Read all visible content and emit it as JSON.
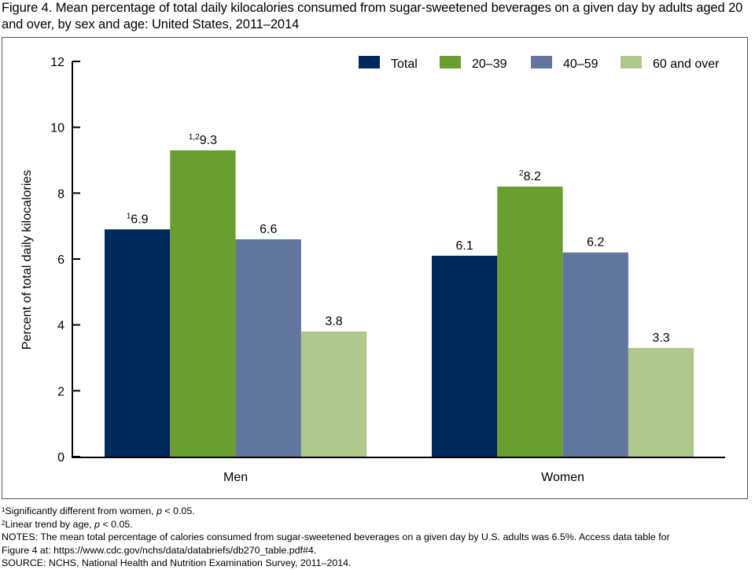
{
  "title": "Figure 4. Mean percentage of total daily kilocalories consumed from sugar-sweetened beverages on a given day by adults aged 20 and over, by sex and age: United States, 2011–2014",
  "chart_data": {
    "type": "bar",
    "title": "Figure 4. Mean percentage of total daily kilocalories consumed from sugar-sweetened beverages on a given day by adults aged 20 and over, by sex and age: United States, 2011–2014",
    "xlabel": "",
    "ylabel": "Percent of total daily kilocalories",
    "ylim": [
      0,
      12
    ],
    "yticks": [
      0,
      2,
      4,
      6,
      8,
      10,
      12
    ],
    "grid": false,
    "legend_position": "top-right",
    "categories": [
      "Men",
      "Women"
    ],
    "series": [
      {
        "name": "Total",
        "color": "#002a5c",
        "values": [
          6.9,
          6.1
        ],
        "labels": [
          "6.9",
          "6.1"
        ],
        "superscripts": [
          "1",
          ""
        ]
      },
      {
        "name": "20–39",
        "color": "#6b9e31",
        "values": [
          9.3,
          8.2
        ],
        "labels": [
          "9.3",
          "8.2"
        ],
        "superscripts": [
          "1,2",
          "2"
        ]
      },
      {
        "name": "40–59",
        "color": "#63769f",
        "values": [
          6.6,
          6.2
        ],
        "labels": [
          "6.6",
          "6.2"
        ],
        "superscripts": [
          "",
          ""
        ]
      },
      {
        "name": "60 and over",
        "color": "#afc88c",
        "values": [
          3.8,
          3.3
        ],
        "labels": [
          "3.8",
          "3.3"
        ],
        "superscripts": [
          "",
          ""
        ]
      }
    ]
  },
  "footnotes": {
    "fn1_mark": "1",
    "fn1_text_a": "Significantly different from women, ",
    "fn1_p": "p",
    "fn1_text_b": " < 0.05.",
    "fn2_mark": "2",
    "fn2_text_a": "Linear trend by age, ",
    "fn2_p": "p",
    "fn2_text_b": " < 0.05.",
    "notes_line1": "NOTES: The mean total percentage of calories consumed from sugar-sweetened beverages on a given day by U.S. adults was 6.5%. Access data table for",
    "notes_line2": "Figure 4 at: https://www.cdc.gov/nchs/data/databriefs/db270_table.pdf#4.",
    "source": "SOURCE: NCHS, National Health and Nutrition Examination Survey, 2011–2014."
  }
}
